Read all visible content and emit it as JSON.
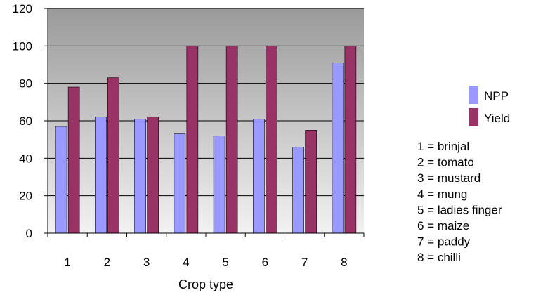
{
  "chart_data": {
    "type": "bar",
    "title": "",
    "xlabel": "Crop type",
    "ylabel": "",
    "categories": [
      "1",
      "2",
      "3",
      "4",
      "5",
      "6",
      "7",
      "8"
    ],
    "series": [
      {
        "name": "NPP",
        "color": "#9999ff",
        "values": [
          57,
          62,
          61,
          53,
          52,
          61,
          46,
          91
        ]
      },
      {
        "name": "Yield",
        "color": "#993366",
        "values": [
          78,
          83,
          62,
          100,
          100,
          100,
          55,
          100
        ]
      }
    ],
    "ylim": [
      0,
      120
    ],
    "yticks": [
      0,
      20,
      40,
      60,
      80,
      100,
      120
    ],
    "grid": true,
    "legend_position": "right",
    "plot_background": "#c0c0c0",
    "crop_key": [
      "1 = brinjal",
      "2 = tomato",
      "3 = mustard",
      "4 = mung",
      "5 = ladies finger",
      "6 = maize",
      "7 = paddy",
      "8 = chilli"
    ]
  }
}
